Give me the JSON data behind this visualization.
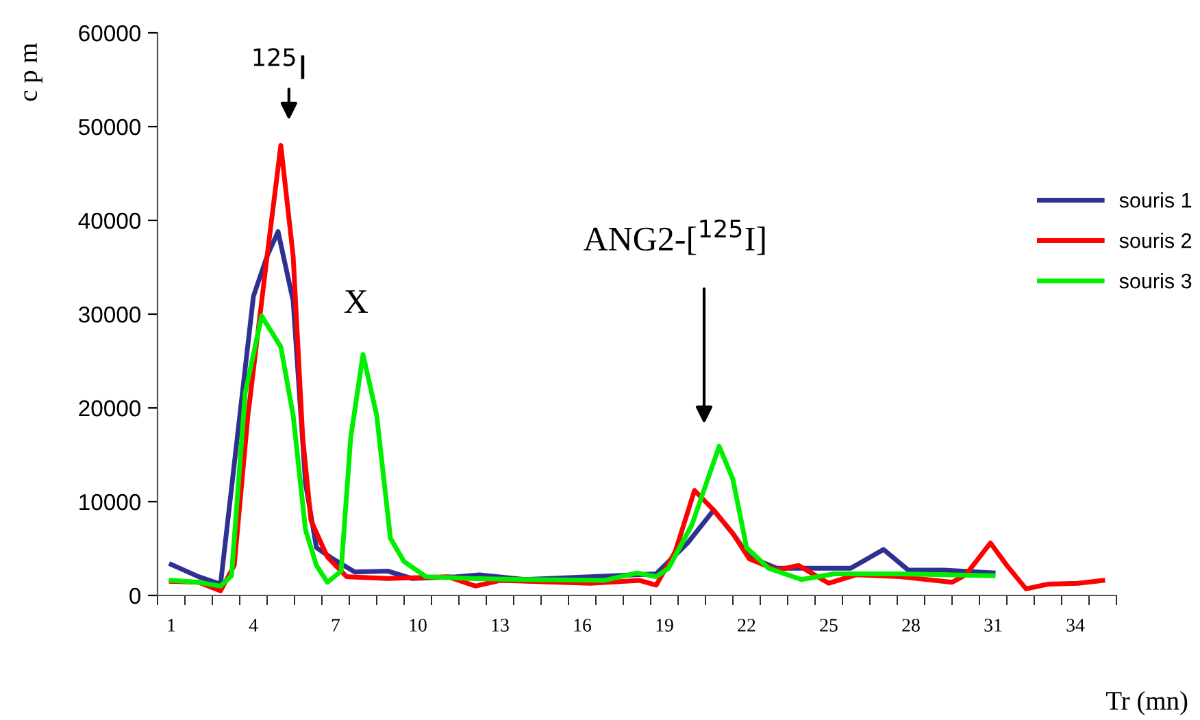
{
  "chart_data": {
    "type": "line",
    "xlabel": "Tr (mn)",
    "ylabel": "c p m",
    "xlim": [
      0.5,
      35.5
    ],
    "ylim": [
      0,
      60000
    ],
    "xticks": [
      {
        "value": 1,
        "label": "1"
      },
      {
        "value": 4,
        "label": "4"
      },
      {
        "value": 7,
        "label": "7"
      },
      {
        "value": 10,
        "label": "10"
      },
      {
        "value": 13,
        "label": "13"
      },
      {
        "value": 16,
        "label": "16"
      },
      {
        "value": 19,
        "label": "19"
      },
      {
        "value": 22,
        "label": "22"
      },
      {
        "value": 25,
        "label": "25"
      },
      {
        "value": 28,
        "label": "28"
      },
      {
        "value": 31,
        "label": "31"
      },
      {
        "value": 34,
        "label": "34"
      },
      {
        "value": 0.5,
        "label": null
      },
      {
        "value": 1.5,
        "label": null
      },
      {
        "value": 2.5,
        "label": null
      },
      {
        "value": 3.5,
        "label": null
      },
      {
        "value": 4.5,
        "label": null
      },
      {
        "value": 5.5,
        "label": null
      },
      {
        "value": 6.5,
        "label": null
      },
      {
        "value": 7.5,
        "label": null
      },
      {
        "value": 8.5,
        "label": null
      },
      {
        "value": 9.5,
        "label": null
      },
      {
        "value": 10.5,
        "label": null
      },
      {
        "value": 11.5,
        "label": null
      },
      {
        "value": 12.5,
        "label": null
      },
      {
        "value": 13.5,
        "label": null
      },
      {
        "value": 14.5,
        "label": null
      },
      {
        "value": 15.5,
        "label": null
      },
      {
        "value": 16.5,
        "label": null
      },
      {
        "value": 17.5,
        "label": null
      },
      {
        "value": 18.5,
        "label": null
      },
      {
        "value": 19.5,
        "label": null
      },
      {
        "value": 20.5,
        "label": null
      },
      {
        "value": 21.5,
        "label": null
      },
      {
        "value": 22.5,
        "label": null
      },
      {
        "value": 23.5,
        "label": null
      },
      {
        "value": 24.5,
        "label": null
      },
      {
        "value": 25.5,
        "label": null
      },
      {
        "value": 26.5,
        "label": null
      },
      {
        "value": 27.5,
        "label": null
      },
      {
        "value": 28.5,
        "label": null
      },
      {
        "value": 29.5,
        "label": null
      },
      {
        "value": 30.5,
        "label": null
      },
      {
        "value": 31.5,
        "label": null
      },
      {
        "value": 32.5,
        "label": null
      },
      {
        "value": 33.5,
        "label": null
      },
      {
        "value": 34.5,
        "label": null
      },
      {
        "value": 35.5,
        "label": null
      }
    ],
    "yticks": [
      0,
      10000,
      20000,
      30000,
      40000,
      50000,
      60000
    ],
    "grid": false,
    "legend": "right",
    "marker": "none",
    "line_style": "solid",
    "series": [
      {
        "name": "souris 1",
        "color": "#2e3192",
        "x": [
          1,
          2,
          2.8,
          4,
          4.5,
          4.9,
          5.45,
          5.9,
          6.3,
          6.9,
          7.7,
          8.9,
          9.8,
          11.4,
          12.25,
          13.9,
          16.3,
          18.7,
          19.85,
          20.8,
          21.5,
          22.1,
          23.1,
          24.4,
          25.8,
          27,
          27.9,
          29.2,
          31
        ],
        "values": [
          3300,
          2000,
          1200,
          31900,
          36200,
          38800,
          31400,
          12000,
          5100,
          3900,
          2500,
          2600,
          1800,
          2000,
          2200,
          1700,
          2000,
          2300,
          5600,
          9100,
          6600,
          4100,
          2900,
          2900,
          2900,
          4900,
          2700,
          2700,
          2400
        ]
      },
      {
        "name": "souris 2",
        "color": "#ff0000",
        "x": [
          1,
          2,
          2.8,
          3.3,
          3.8,
          4.5,
          5,
          5.45,
          5.8,
          6.1,
          6.7,
          7.4,
          8.9,
          11.1,
          12.1,
          13,
          16.3,
          18.1,
          18.7,
          19.4,
          20.1,
          20.8,
          21.5,
          22.1,
          23.1,
          23.9,
          25,
          26,
          27.6,
          29.5,
          30,
          30.9,
          31.5,
          32.2,
          33,
          34.1,
          35
        ],
        "values": [
          1500,
          1400,
          500,
          3200,
          19200,
          36200,
          48000,
          36200,
          16800,
          8000,
          4100,
          2000,
          1800,
          2000,
          1000,
          1600,
          1300,
          1600,
          1100,
          4700,
          11200,
          9100,
          6600,
          3900,
          2700,
          3200,
          1300,
          2200,
          2000,
          1400,
          2200,
          5600,
          3200,
          700,
          1200,
          1300,
          1600
        ]
      },
      {
        "name": "souris 3",
        "color": "#00ee00",
        "x": [
          1,
          2,
          2.8,
          3.2,
          3.7,
          4.3,
          5,
          5.45,
          5.9,
          6.3,
          6.7,
          7.2,
          7.55,
          8,
          8.5,
          9,
          9.5,
          10.3,
          11.9,
          13.9,
          16.8,
          18,
          18.7,
          19.15,
          20,
          21,
          21.5,
          22,
          22.8,
          24,
          25.2,
          27.6,
          31
        ],
        "values": [
          1600,
          1400,
          1000,
          2100,
          21600,
          29800,
          26500,
          19200,
          7000,
          3200,
          1400,
          2600,
          16800,
          25700,
          19200,
          6100,
          3600,
          2000,
          1800,
          1700,
          1600,
          2400,
          2000,
          2900,
          7500,
          15900,
          12400,
          5100,
          2900,
          1700,
          2300,
          2300,
          2100
        ]
      }
    ],
    "annotations": [
      "$^{125}$I",
      "X",
      "ANG2-[$^{125}$I]"
    ]
  }
}
